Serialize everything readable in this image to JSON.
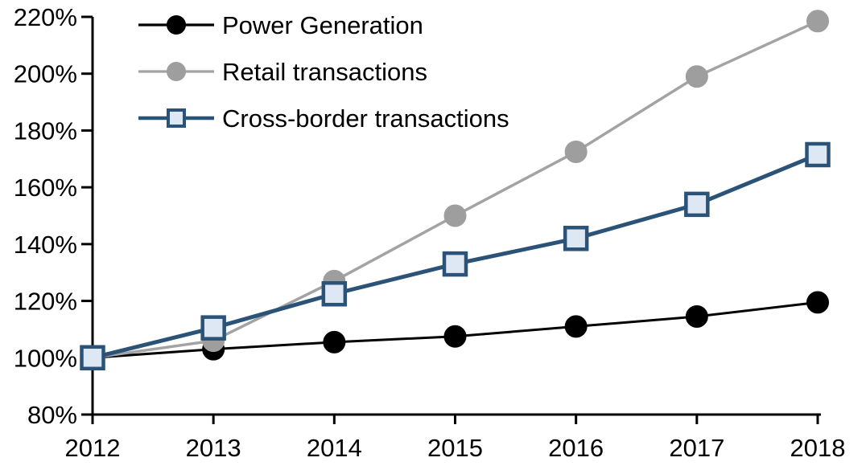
{
  "chart_data": {
    "type": "line",
    "title": "",
    "xlabel": "",
    "ylabel": "",
    "x": [
      2012,
      2013,
      2014,
      2015,
      2016,
      2017,
      2018
    ],
    "x_tick_labels": [
      "2012",
      "2013",
      "2014",
      "2015",
      "2016",
      "2017",
      "2018"
    ],
    "ylim": [
      80,
      220
    ],
    "ytick_step": 20,
    "y_tick_labels": [
      "80%",
      "100%",
      "120%",
      "140%",
      "160%",
      "180%",
      "200%",
      "220%"
    ],
    "grid": false,
    "legend_position": "top-left",
    "series": [
      {
        "name": "Power Generation",
        "marker": "circle",
        "line_color": "#000000",
        "marker_fill": "#000000",
        "marker_stroke": "#000000",
        "line_width": 3,
        "values": [
          100,
          103,
          105.5,
          107.5,
          111,
          114.5,
          119.5
        ]
      },
      {
        "name": "Retail transactions",
        "marker": "circle",
        "line_color": "#A3A3A3",
        "marker_fill": "#9E9E9E",
        "marker_stroke": "#9E9E9E",
        "line_width": 3.5,
        "values": [
          100,
          106,
          127,
          150,
          172.5,
          199,
          218.5
        ]
      },
      {
        "name": "Cross-border transactions",
        "marker": "square",
        "line_color": "#2B5378",
        "marker_fill": "#DEE8F4",
        "marker_stroke": "#2B5378",
        "line_width": 5,
        "values": [
          100,
          110.5,
          122.5,
          133,
          142,
          154,
          171.5
        ]
      }
    ],
    "axis_color": "#000000",
    "background_color": "#FFFFFF"
  }
}
